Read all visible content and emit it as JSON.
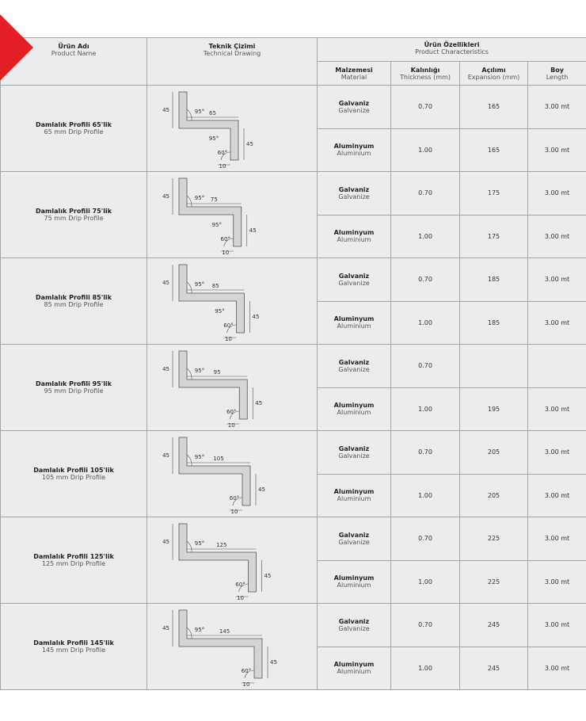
{
  "header": {
    "name": {
      "tr": "Ürün Adı",
      "en": "Product Name"
    },
    "drawing": {
      "tr": "Teknik Çizimi",
      "en": "Technical Drawing"
    },
    "characteristics": {
      "tr": "Ürün Özellikleri",
      "en": "Product Characteristics"
    },
    "columns": [
      {
        "tr": "Malzemesi",
        "en": "Material"
      },
      {
        "tr": "Kalınlığı",
        "en": "Thickness (mm)"
      },
      {
        "tr": "Açılımı",
        "en": "Expansion (mm)"
      },
      {
        "tr": "Boy",
        "en": "Length"
      }
    ]
  },
  "rows": [
    {
      "name_tr": "Damlalık Profili 65'lik",
      "name_en": "65 mm Drip Profile",
      "drawing": {
        "height": "45",
        "angle_top": "95°",
        "width": "65",
        "angle_bottom": "95°",
        "depth": "45",
        "angle_tip": "60°",
        "tip": "10"
      },
      "variants": [
        {
          "material_tr": "Galvaniz",
          "material_en": "Galvanize",
          "thickness": "0.70",
          "expansion": "165",
          "length": "3.00 mt"
        },
        {
          "material_tr": "Aluminyum",
          "material_en": "Aluminium",
          "thickness": "1.00",
          "expansion": "165",
          "length": "3.00 mt"
        }
      ]
    },
    {
      "name_tr": "Damlalık Profili 75'lik",
      "name_en": "75 mm Drip Profile",
      "drawing": {
        "height": "45",
        "angle_top": "95°",
        "width": "75",
        "angle_bottom": "95°",
        "depth": "45",
        "angle_tip": "60°",
        "tip": "10"
      },
      "variants": [
        {
          "material_tr": "Galvaniz",
          "material_en": "Galvanize",
          "thickness": "0.70",
          "expansion": "175",
          "length": "3.00 mt"
        },
        {
          "material_tr": "Aluminyum",
          "material_en": "Aluminium",
          "thickness": "1.00",
          "expansion": "175",
          "length": "3.00 mt"
        }
      ]
    },
    {
      "name_tr": "Damlalık Profili 85'lik",
      "name_en": "85 mm Drip Profile",
      "drawing": {
        "height": "45",
        "angle_top": "95°",
        "width": "85",
        "angle_bottom": "95°",
        "depth": "45",
        "angle_tip": "60°",
        "tip": "10"
      },
      "variants": [
        {
          "material_tr": "Galvaniz",
          "material_en": "Galvanize",
          "thickness": "0.70",
          "expansion": "185",
          "length": "3.00 mt"
        },
        {
          "material_tr": "Aluminyum",
          "material_en": "Aluminium",
          "thickness": "1.00",
          "expansion": "185",
          "length": "3.00 mt"
        }
      ]
    },
    {
      "name_tr": "Damlalık Profili 95'lik",
      "name_en": "95 mm Drip Profile",
      "drawing": {
        "height": "45",
        "angle_top": "95°",
        "width": "95",
        "depth": "45",
        "angle_tip": "60°",
        "tip": "10"
      },
      "variants": [
        {
          "material_tr": "Galvaniz",
          "material_en": "Galvanize",
          "thickness": "0.70"
        },
        {
          "material_tr": "Aluminyum",
          "material_en": "Aluminium",
          "thickness": "1.00",
          "expansion": "195",
          "length": "3.00 mt"
        }
      ]
    },
    {
      "name_tr": "Damlalık Profili 105'lik",
      "name_en": "105 mm Drip Profile",
      "drawing": {
        "height": "45",
        "angle_top": "95°",
        "width": "105",
        "depth": "45",
        "angle_tip": "60°",
        "tip": "10"
      },
      "variants": [
        {
          "material_tr": "Galvaniz",
          "material_en": "Galvanize",
          "thickness": "0.70",
          "expansion": "205",
          "length": "3.00 mt"
        },
        {
          "material_tr": "Aluminyum",
          "material_en": "Aluminium",
          "thickness": "1.00",
          "expansion": "205",
          "length": "3.00 mt"
        }
      ]
    },
    {
      "name_tr": "Damlalık Profili 125'lik",
      "name_en": "125 mm Drip Profile",
      "drawing": {
        "height": "45",
        "angle_top": "95°",
        "width": "125",
        "depth": "45",
        "angle_tip": "60°",
        "tip": "10"
      },
      "variants": [
        {
          "material_tr": "Galvaniz",
          "material_en": "Galvanize",
          "thickness": "0.70",
          "expansion": "225",
          "length": "3.00 mt"
        },
        {
          "material_tr": "Aluminyum",
          "material_en": "Aluminium",
          "thickness": "1.00",
          "expansion": "225",
          "length": "3.00 mt"
        }
      ]
    },
    {
      "name_tr": "Damlalık Profili 145'lik",
      "name_en": "145 mm Drip Profile",
      "drawing": {
        "height": "45",
        "angle_top": "95°",
        "width": "145",
        "depth": "45",
        "angle_tip": "60°",
        "tip": "10"
      },
      "variants": [
        {
          "material_tr": "Galvaniz",
          "material_en": "Galvanize",
          "thickness": "0.70",
          "expansion": "245",
          "length": "3.00 mt"
        },
        {
          "material_tr": "Aluminyum",
          "material_en": "Aluminium",
          "thickness": "1.00",
          "expansion": "245",
          "length": "3.00 mt"
        }
      ]
    }
  ]
}
